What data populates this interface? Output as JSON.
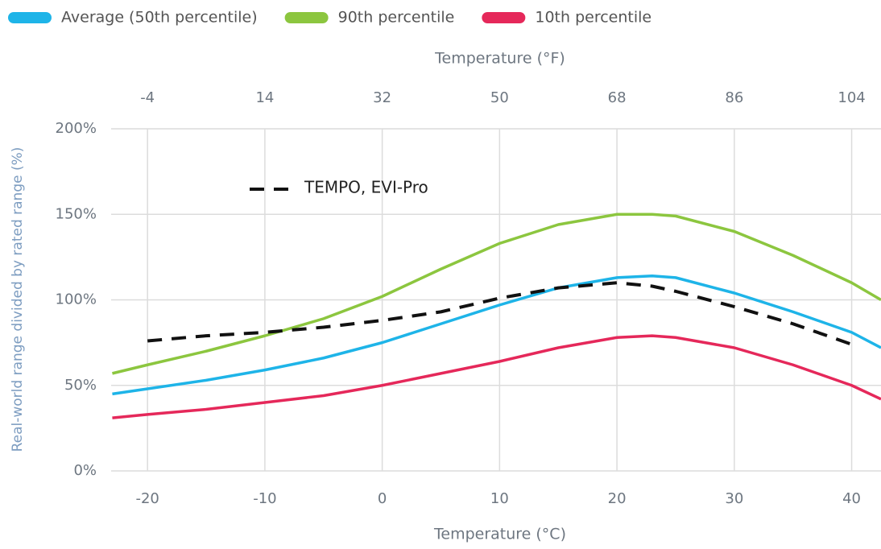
{
  "chart_data": {
    "type": "line",
    "xlabel": "Temperature (°C)",
    "x2label": "Temperature (°F)",
    "ylabel": "Real-world range divided by rated range (%)",
    "x": [
      -23,
      -20,
      -15,
      -10,
      -5,
      0,
      5,
      10,
      15,
      20,
      23,
      25,
      30,
      35,
      40,
      42.5
    ],
    "series": [
      {
        "name": "Average (50th percentile)",
        "color": "#1eb4e8",
        "values": [
          45,
          48,
          53,
          59,
          66,
          75,
          86,
          97,
          107,
          113,
          114,
          113,
          104,
          93,
          81,
          72
        ]
      },
      {
        "name": "90th percentile",
        "color": "#8cc63f",
        "values": [
          57,
          62,
          70,
          79,
          89,
          102,
          118,
          133,
          144,
          150,
          150,
          149,
          140,
          126,
          110,
          100
        ]
      },
      {
        "name": "10th percentile",
        "color": "#e5285a",
        "values": [
          31,
          33,
          36,
          40,
          44,
          50,
          57,
          64,
          72,
          78,
          79,
          78,
          72,
          62,
          50,
          42
        ]
      },
      {
        "name": "TEMPO, EVI-Pro",
        "color": "#111111",
        "dashed": true,
        "values": [
          null,
          76,
          79,
          81,
          84,
          88,
          93,
          101,
          107,
          110,
          108,
          105,
          96,
          86,
          74,
          null
        ]
      }
    ],
    "xlim": [
      -23.1,
      42.5
    ],
    "xticks": [
      -20,
      -10,
      0,
      10,
      20,
      30,
      40
    ],
    "x2lim": [
      -9.58,
      108.5
    ],
    "x2ticks": [
      -4,
      14,
      32,
      50,
      68,
      86,
      104
    ],
    "ylim": [
      0,
      200
    ],
    "yticks": [
      {
        "value": 0,
        "label": "0%"
      },
      {
        "value": 50,
        "label": "50%"
      },
      {
        "value": 100,
        "label": "100%"
      },
      {
        "value": 150,
        "label": "150%"
      },
      {
        "value": 200,
        "label": "200%"
      }
    ],
    "grid": true
  }
}
